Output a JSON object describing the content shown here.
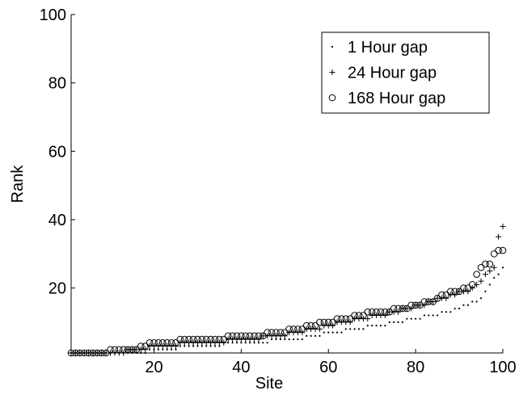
{
  "chart_data": {
    "type": "scatter",
    "xlabel": "Site",
    "ylabel": "Rank",
    "x": [
      1,
      2,
      3,
      4,
      5,
      6,
      7,
      8,
      9,
      10,
      11,
      12,
      13,
      14,
      15,
      16,
      17,
      18,
      19,
      20,
      21,
      22,
      23,
      24,
      25,
      26,
      27,
      28,
      29,
      30,
      31,
      32,
      33,
      34,
      35,
      36,
      37,
      38,
      39,
      40,
      41,
      42,
      43,
      44,
      45,
      46,
      47,
      48,
      49,
      50,
      51,
      52,
      53,
      54,
      55,
      56,
      57,
      58,
      59,
      60,
      61,
      62,
      63,
      64,
      65,
      66,
      67,
      68,
      69,
      70,
      71,
      72,
      73,
      74,
      75,
      76,
      77,
      78,
      79,
      80,
      81,
      82,
      83,
      84,
      85,
      86,
      87,
      88,
      89,
      90,
      91,
      92,
      93,
      94,
      95,
      96,
      97,
      98,
      99,
      100
    ],
    "series": [
      {
        "name": "1 Hour gap",
        "marker": "dot",
        "color": "#000000",
        "values": [
          1,
          1,
          1,
          1,
          1,
          1,
          1,
          1,
          1,
          1,
          1,
          1,
          1,
          1,
          1,
          1,
          1,
          1,
          2,
          2,
          2,
          2,
          2,
          2,
          2,
          3,
          3,
          3,
          3,
          3,
          3,
          3,
          3,
          3,
          3,
          4,
          4,
          4,
          4,
          4,
          4,
          4,
          4,
          4,
          4,
          4,
          5,
          5,
          5,
          5,
          5,
          5,
          5,
          5,
          6,
          6,
          6,
          6,
          7,
          7,
          7,
          7,
          7,
          8,
          8,
          8,
          8,
          8,
          9,
          9,
          9,
          9,
          9,
          10,
          10,
          10,
          10,
          11,
          11,
          11,
          11,
          12,
          12,
          12,
          12,
          13,
          13,
          13,
          14,
          14,
          15,
          15,
          16,
          16,
          17,
          19,
          21,
          23,
          24,
          26
        ]
      },
      {
        "name": "24 Hour gap",
        "marker": "plus",
        "color": "#000000",
        "values": [
          1,
          1,
          1,
          1,
          1,
          1,
          1,
          1,
          1,
          1,
          1,
          1,
          1,
          2,
          2,
          2,
          2,
          2,
          3,
          3,
          3,
          3,
          3,
          3,
          3,
          4,
          4,
          4,
          4,
          4,
          4,
          4,
          4,
          4,
          4,
          4,
          5,
          5,
          5,
          5,
          5,
          5,
          5,
          5,
          6,
          6,
          6,
          6,
          6,
          6,
          7,
          7,
          7,
          7,
          8,
          8,
          8,
          8,
          9,
          9,
          9,
          10,
          10,
          10,
          10,
          11,
          11,
          11,
          11,
          12,
          12,
          12,
          12,
          13,
          13,
          13,
          14,
          14,
          14,
          15,
          15,
          15,
          16,
          16,
          17,
          17,
          17,
          18,
          18,
          19,
          19,
          19,
          20,
          21,
          22,
          24,
          25,
          26,
          35,
          38
        ]
      },
      {
        "name": "168 Hour gap",
        "marker": "circle",
        "color": "#000000",
        "values": [
          1,
          1,
          1,
          1,
          1,
          1,
          1,
          1,
          1,
          2,
          2,
          2,
          2,
          2,
          2,
          2,
          3,
          3,
          4,
          4,
          4,
          4,
          4,
          4,
          4,
          5,
          5,
          5,
          5,
          5,
          5,
          5,
          5,
          5,
          5,
          5,
          6,
          6,
          6,
          6,
          6,
          6,
          6,
          6,
          6,
          7,
          7,
          7,
          7,
          7,
          8,
          8,
          8,
          8,
          9,
          9,
          9,
          10,
          10,
          10,
          10,
          11,
          11,
          11,
          11,
          12,
          12,
          12,
          13,
          13,
          13,
          13,
          13,
          13,
          14,
          14,
          14,
          14,
          15,
          15,
          15,
          16,
          16,
          16,
          17,
          18,
          18,
          19,
          19,
          19,
          20,
          20,
          21,
          24,
          26,
          27,
          27,
          30,
          31,
          31
        ]
      }
    ],
    "xlim": [
      1,
      100
    ],
    "ylim": [
      1,
      100
    ],
    "xticks": [
      20,
      40,
      60,
      80,
      100
    ],
    "yticks": [
      20,
      40,
      60,
      80,
      100
    ],
    "legend": "northeast"
  }
}
